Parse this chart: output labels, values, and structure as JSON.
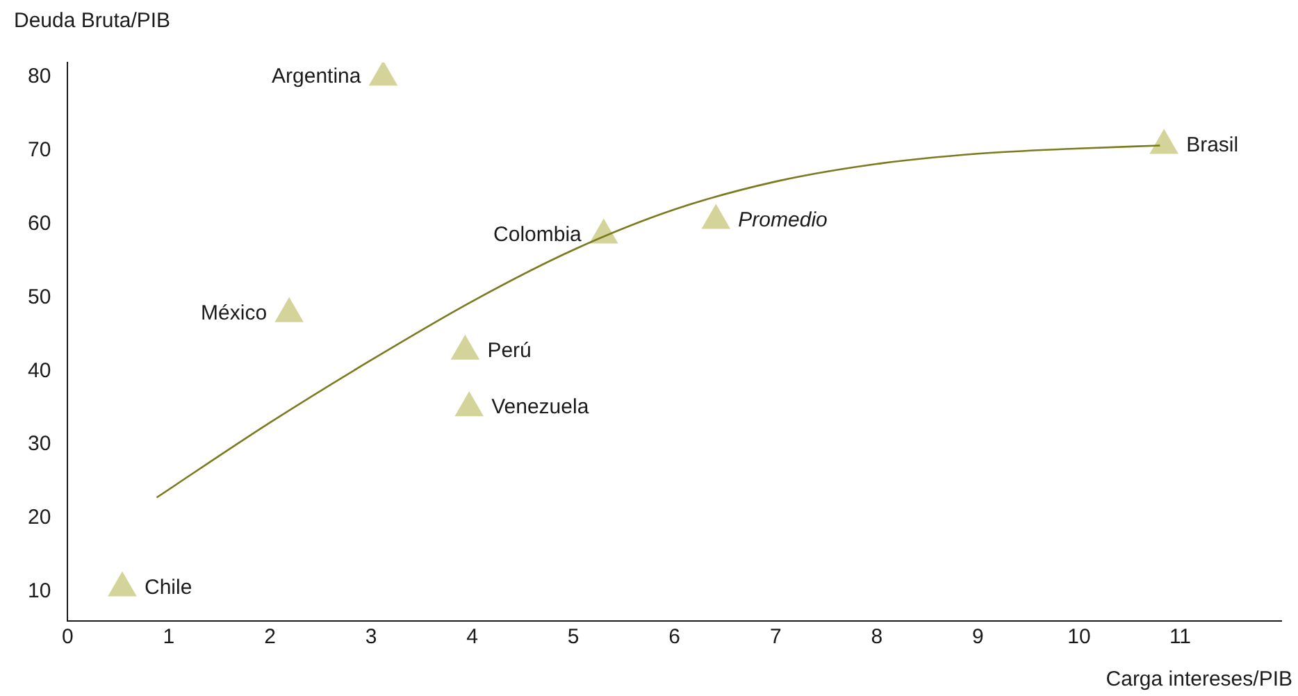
{
  "chart_data": {
    "type": "scatter",
    "ylabel": "Deuda Bruta/PIB",
    "xlabel": "Carga intereses/PIB",
    "xlim": [
      0,
      12
    ],
    "xticks": [
      0,
      1,
      2,
      3,
      4,
      5,
      6,
      7,
      8,
      9,
      10,
      11
    ],
    "ylim": [
      6,
      82
    ],
    "yticks": [
      10,
      20,
      30,
      40,
      50,
      60,
      70,
      80
    ],
    "grid": false,
    "legend": false,
    "series": [
      {
        "marker": "triangle",
        "color": "#d4d49a",
        "x": [
          0.54,
          3.12,
          2.19,
          3.93,
          3.97,
          5.3,
          6.41,
          10.84
        ],
        "values": [
          10.5,
          80,
          47.8,
          42.7,
          35,
          58.5,
          60.5,
          70.7
        ]
      },
      {
        "type": "line",
        "color": "#7a7a1e",
        "x": [
          0.88,
          2,
          3,
          4,
          5,
          6,
          7,
          8,
          9,
          10,
          10.8
        ],
        "values": [
          22.8,
          33,
          41.5,
          49.5,
          56.5,
          62,
          65.8,
          68.2,
          69.6,
          70.3,
          70.7
        ]
      }
    ],
    "annotations": [
      {
        "text": "Chile",
        "x": 0.54,
        "y": 10.5
      },
      {
        "text": "Argentina",
        "x": 3.12,
        "y": 80
      },
      {
        "text": "México",
        "x": 2.19,
        "y": 47.8
      },
      {
        "text": "Perú",
        "x": 3.93,
        "y": 42.7
      },
      {
        "text": "Venezuela",
        "x": 3.97,
        "y": 35
      },
      {
        "text": "Colombia",
        "x": 5.3,
        "y": 58.5
      },
      {
        "text": "Promedio",
        "x": 6.41,
        "y": 60.5
      },
      {
        "text": "Brasil",
        "x": 10.84,
        "y": 70.7
      }
    ]
  }
}
